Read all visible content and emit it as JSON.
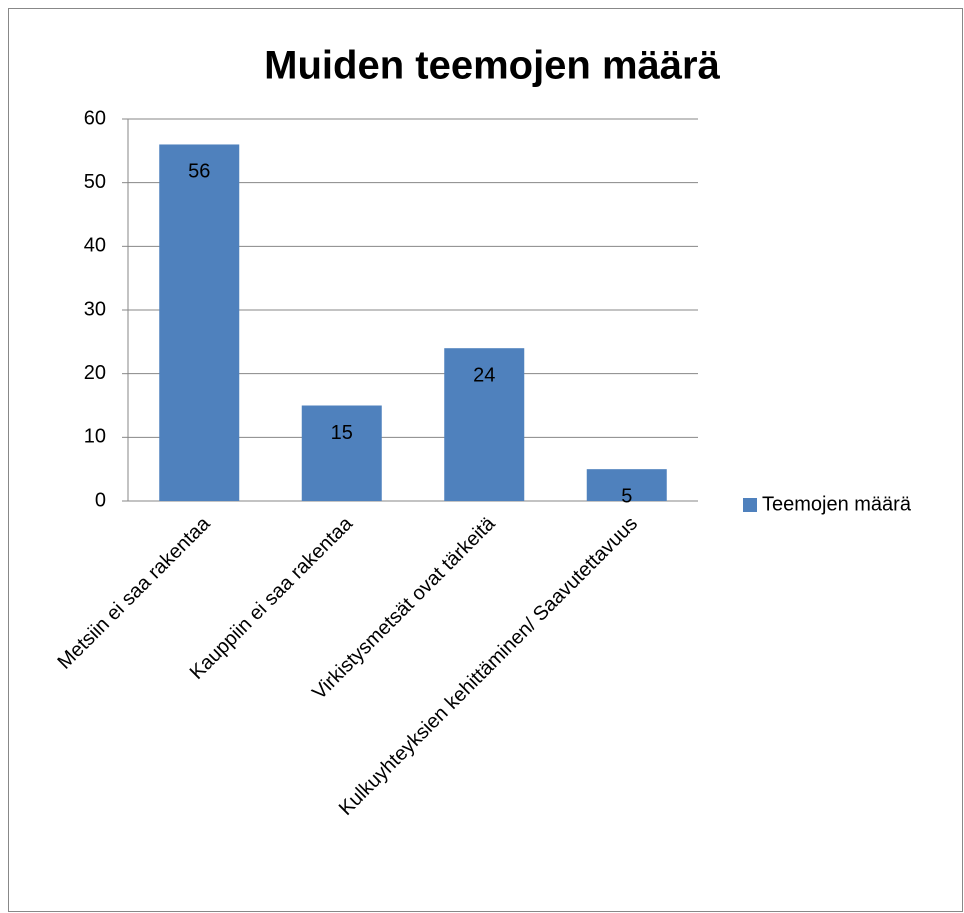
{
  "chart_data": {
    "type": "bar",
    "title": "Muiden teemojen määrä",
    "categories": [
      "Metsiin ei saa rakentaa",
      "Kauppiin ei saa rakentaa",
      "Virkistysmetsät ovat tärkeitä",
      "Kulkuyhteyksien kehittäminen/ Saavutettavuus"
    ],
    "series": [
      {
        "name": "Teemojen määrä",
        "color": "#4f81bd",
        "values": [
          56,
          15,
          24,
          5
        ]
      }
    ],
    "ylim": [
      0,
      60
    ],
    "yticks": [
      0,
      10,
      20,
      30,
      40,
      50,
      60
    ],
    "grid": true,
    "legend": "right"
  }
}
